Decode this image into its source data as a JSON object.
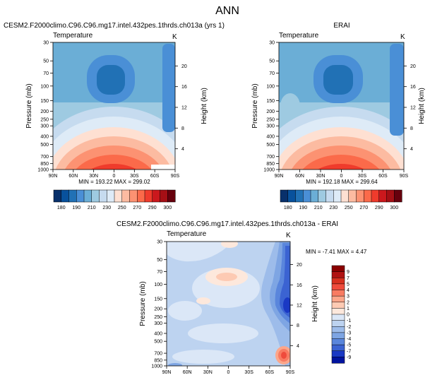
{
  "page": {
    "title": "ANN"
  },
  "panels": [
    {
      "id": "model",
      "title": "CESM2.F2000climo.C96.C96.mg17.intel.432pes.1thrds.ch013a (yrs 1)",
      "variable": "Temperature",
      "units": "K",
      "stats": "MIN = 193.22   MAX = 299.02"
    },
    {
      "id": "obs",
      "title": "ERAI",
      "variable": "Temperature",
      "units": "K",
      "stats": "MIN = 192.18   MAX = 299.64"
    },
    {
      "id": "diff",
      "title": "CESM2.F2000climo.C96.C96.mg17.intel.432pes.1thrds.ch013a - ERAI",
      "variable": "Temperature",
      "units": "K",
      "stats": "MIN =  -7.41   MAX =   4.47"
    }
  ],
  "colorbars": {
    "absolute": {
      "labels": [
        "180",
        "190",
        "210",
        "230",
        "250",
        "270",
        "290",
        "300"
      ],
      "colors": [
        "#08306b",
        "#08519c",
        "#2171b5",
        "#4a8fd6",
        "#6baed6",
        "#9ecae1",
        "#c6dbef",
        "#deebf7",
        "#fee0d2",
        "#fcbba1",
        "#fc9272",
        "#fb6a4a",
        "#ef3b2c",
        "#cb181d",
        "#a50f15",
        "#67000d"
      ]
    },
    "difference": {
      "labels": [
        "9",
        "7",
        "5",
        "4",
        "3",
        "2",
        "1",
        "0",
        "-1",
        "-2",
        "-3",
        "-4",
        "-5",
        "-7",
        "-9"
      ],
      "colors": [
        "#8b0000",
        "#b01212",
        "#d7301f",
        "#ef4b3c",
        "#f87b62",
        "#fca68a",
        "#fdcab3",
        "#fde8dc",
        "#dbe7f7",
        "#bdd3f0",
        "#9dbcea",
        "#7ea5e3",
        "#5a86dc",
        "#3b63d2",
        "#1a39c4",
        "#00139e"
      ]
    }
  },
  "chart_data": [
    {
      "type": "heatmap",
      "title": "CESM2.F2000climo.C96.C96.mg17.intel.432pes.1thrds.ch013a (yrs 1)",
      "xlabel": "",
      "ylabel": "Pressure (mb)",
      "y2label": "Height (km)",
      "x_ticks": [
        "90N",
        "60N",
        "30N",
        "0",
        "30S",
        "60S",
        "90S"
      ],
      "y_ticks": [
        30,
        50,
        70,
        100,
        150,
        200,
        250,
        300,
        400,
        500,
        700,
        850,
        1000
      ],
      "y2_ticks": [
        4,
        8,
        12,
        16,
        20
      ],
      "ylim": [
        1000,
        30
      ],
      "x": [
        90,
        60,
        30,
        0,
        -30,
        -60,
        -90
      ],
      "y": [
        30,
        100,
        200,
        300,
        500,
        850,
        1000
      ],
      "z": [
        [
          225,
          222,
          219,
          219,
          219,
          222,
          225
        ],
        [
          216,
          208,
          196,
          193,
          196,
          209,
          220
        ],
        [
          224,
          219,
          214,
          212,
          214,
          219,
          222
        ],
        [
          236,
          238,
          240,
          242,
          240,
          236,
          226
        ],
        [
          253,
          258,
          265,
          266,
          262,
          252,
          238
        ],
        [
          261,
          272,
          285,
          291,
          284,
          268,
          250
        ],
        [
          265,
          279,
          294,
          299,
          292,
          276,
          254
        ]
      ],
      "min": 193.22,
      "max": 299.02
    },
    {
      "type": "heatmap",
      "title": "ERAI",
      "xlabel": "",
      "ylabel": "Pressure (mb)",
      "y2label": "Height (km)",
      "x_ticks": [
        "90N",
        "60N",
        "30N",
        "0",
        "30S",
        "60S",
        "90S"
      ],
      "y_ticks": [
        30,
        50,
        70,
        100,
        150,
        200,
        250,
        300,
        400,
        500,
        700,
        850,
        1000
      ],
      "y2_ticks": [
        4,
        8,
        12,
        16,
        20
      ],
      "ylim": [
        1000,
        30
      ],
      "x": [
        90,
        60,
        30,
        0,
        -30,
        -60,
        -90
      ],
      "y": [
        30,
        100,
        200,
        300,
        500,
        850,
        1000
      ],
      "z": [
        [
          224,
          221,
          218,
          218,
          218,
          221,
          224
        ],
        [
          220,
          208,
          195,
          192,
          195,
          208,
          222
        ],
        [
          226,
          218,
          213,
          211,
          213,
          219,
          224
        ],
        [
          237,
          238,
          240,
          242,
          240,
          237,
          227
        ],
        [
          253,
          258,
          265,
          267,
          262,
          252,
          239
        ],
        [
          262,
          273,
          286,
          292,
          285,
          269,
          251
        ],
        [
          266,
          280,
          295,
          299,
          293,
          277,
          255
        ]
      ],
      "min": 192.18,
      "max": 299.64
    },
    {
      "type": "heatmap",
      "title": "CESM2.F2000climo.C96.C96.mg17.intel.432pes.1thrds.ch013a - ERAI",
      "xlabel": "",
      "ylabel": "Pressure (mb)",
      "y2label": "Height (km)",
      "x_ticks": [
        "90N",
        "60N",
        "30N",
        "0",
        "30S",
        "60S",
        "90S"
      ],
      "y_ticks": [
        30,
        50,
        70,
        100,
        150,
        200,
        250,
        300,
        400,
        500,
        700,
        850,
        1000
      ],
      "y2_ticks": [
        4,
        8,
        12,
        16,
        20
      ],
      "ylim": [
        1000,
        30
      ],
      "x": [
        90,
        60,
        30,
        0,
        -30,
        -60,
        -90
      ],
      "y": [
        30,
        100,
        200,
        300,
        500,
        850,
        1000
      ],
      "z": [
        [
          -1,
          -1,
          -0.5,
          0.5,
          0.5,
          -1,
          -3
        ],
        [
          -2,
          -1,
          -0.5,
          1,
          -0.5,
          -2,
          -4
        ],
        [
          -1,
          -1,
          -2,
          -1,
          -1,
          -3,
          -7
        ],
        [
          -1,
          -1,
          -1,
          -1,
          -1,
          -2,
          -3
        ],
        [
          -1,
          0.5,
          -1,
          -1,
          -1,
          -1,
          -1
        ],
        [
          -1,
          -1,
          -1,
          -1,
          -1,
          -1,
          1
        ],
        [
          -1,
          -1,
          -1,
          -1,
          -1,
          -1,
          4
        ]
      ],
      "min": -7.41,
      "max": 4.47
    }
  ]
}
